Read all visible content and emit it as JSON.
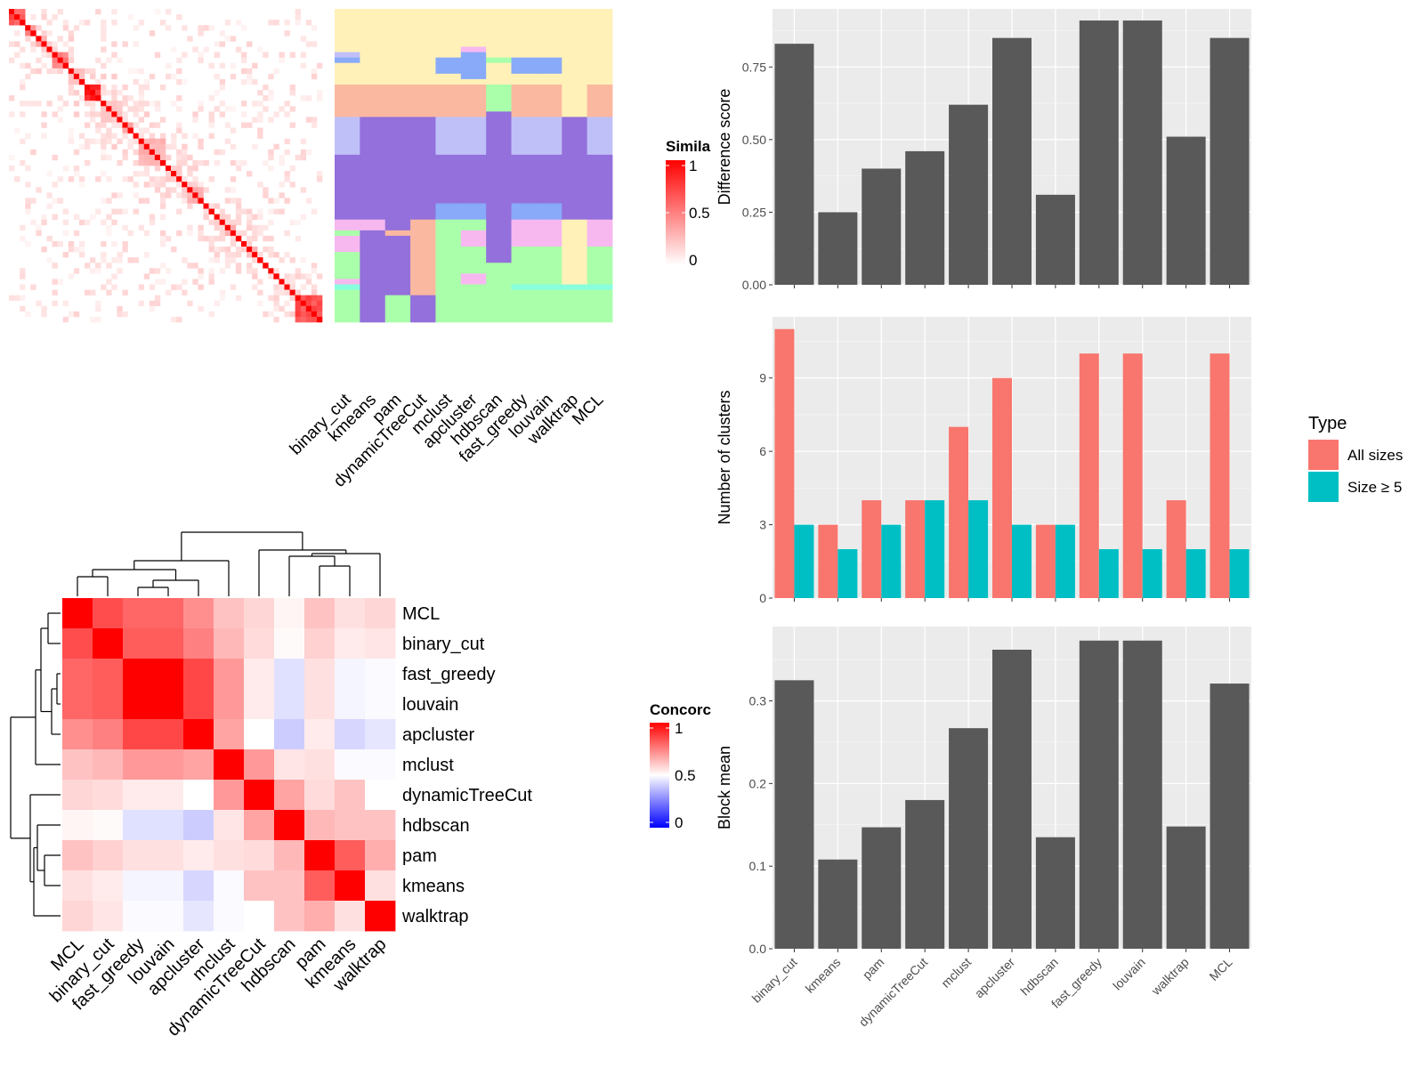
{
  "colors": {
    "panel_bg": "#ebebeb",
    "grid": "#ffffff",
    "bar_gray": "#595959",
    "all_sizes": "#f8766d",
    "size_ge5": "#00bfc4",
    "heat_high": "#ff0000",
    "heat_mid": "#ffffff",
    "heat_low": "#0000ff"
  },
  "chart_data": [
    {
      "id": "similarity-heatmap",
      "type": "heatmap",
      "legend": {
        "title": "Simila",
        "ticks": [
          "1",
          "0.5",
          "0"
        ]
      },
      "n_terms": 58,
      "blocks": [
        {
          "start": 0,
          "size": 3,
          "value": 0.65
        },
        {
          "start": 3,
          "size": 2,
          "value": 0.45
        },
        {
          "start": 5,
          "size": 2,
          "value": 0.3
        },
        {
          "start": 8,
          "size": 3,
          "value": 0.5
        },
        {
          "start": 11,
          "size": 3,
          "value": 0.25
        },
        {
          "start": 14,
          "size": 3,
          "value": 0.8
        },
        {
          "start": 17,
          "size": 4,
          "value": 0.22
        },
        {
          "start": 21,
          "size": 2,
          "value": 0.4
        },
        {
          "start": 24,
          "size": 5,
          "value": 0.3
        },
        {
          "start": 29,
          "size": 3,
          "value": 0.2
        },
        {
          "start": 33,
          "size": 3,
          "value": 0.3
        },
        {
          "start": 40,
          "size": 2,
          "value": 0.35
        },
        {
          "start": 44,
          "size": 2,
          "value": 0.3
        },
        {
          "start": 53,
          "size": 5,
          "value": 0.7
        }
      ],
      "clusters": [
        {
          "name": "binary_cut",
          "segments": [
            [
              0,
              8,
              "#fff1b8"
            ],
            [
              8,
              9,
              "#c0c0f8"
            ],
            [
              9,
              10,
              "#88aaf8"
            ],
            [
              10,
              14,
              "#fff1b8"
            ],
            [
              14,
              20,
              "#fbb8a0"
            ],
            [
              20,
              22,
              "#c0c0f8"
            ],
            [
              22,
              27,
              "#c0c0f8"
            ],
            [
              27,
              39,
              "#9370db"
            ],
            [
              39,
              41,
              "#f7b8f0"
            ],
            [
              41,
              42,
              "#aaffaa"
            ],
            [
              42,
              45,
              "#f7b8f0"
            ],
            [
              45,
              48,
              "#aaffaa"
            ],
            [
              48,
              50,
              "#aaffaa"
            ],
            [
              50,
              51,
              "#f7b8f0"
            ],
            [
              51,
              52,
              "#88ffdd"
            ],
            [
              52,
              58,
              "#aaffaa"
            ]
          ]
        },
        {
          "name": "kmeans",
          "segments": [
            [
              0,
              14,
              "#fff1b8"
            ],
            [
              14,
              20,
              "#fbb8a0"
            ],
            [
              20,
              39,
              "#9370db"
            ],
            [
              39,
              41,
              "#f7b8f0"
            ],
            [
              41,
              58,
              "#9370db"
            ]
          ]
        },
        {
          "name": "pam",
          "segments": [
            [
              0,
              14,
              "#fff1b8"
            ],
            [
              14,
              20,
              "#fbb8a0"
            ],
            [
              20,
              41,
              "#9370db"
            ],
            [
              41,
              42,
              "#fbb8a0"
            ],
            [
              42,
              53,
              "#9370db"
            ],
            [
              53,
              58,
              "#aaffaa"
            ]
          ]
        },
        {
          "name": "dynamicTreeCut",
          "segments": [
            [
              0,
              14,
              "#fff1b8"
            ],
            [
              14,
              20,
              "#fbb8a0"
            ],
            [
              20,
              27,
              "#9370db"
            ],
            [
              27,
              39,
              "#9370db"
            ],
            [
              39,
              53,
              "#fbb8a0"
            ],
            [
              53,
              58,
              "#9370db"
            ]
          ]
        },
        {
          "name": "mclust",
          "segments": [
            [
              0,
              9,
              "#fff1b8"
            ],
            [
              9,
              12,
              "#88aaf8"
            ],
            [
              12,
              14,
              "#fff1b8"
            ],
            [
              14,
              20,
              "#fbb8a0"
            ],
            [
              20,
              27,
              "#c0c0f8"
            ],
            [
              27,
              36,
              "#9370db"
            ],
            [
              36,
              39,
              "#88aaf8"
            ],
            [
              39,
              58,
              "#aaffaa"
            ]
          ]
        },
        {
          "name": "apcluster",
          "segments": [
            [
              0,
              7,
              "#fff1b8"
            ],
            [
              7,
              8,
              "#f7b8f0"
            ],
            [
              8,
              12,
              "#88aaf8"
            ],
            [
              12,
              13,
              "#88aaf8"
            ],
            [
              13,
              14,
              "#fff1b8"
            ],
            [
              14,
              20,
              "#fbb8a0"
            ],
            [
              20,
              27,
              "#c0c0f8"
            ],
            [
              27,
              36,
              "#9370db"
            ],
            [
              36,
              39,
              "#88aaf8"
            ],
            [
              39,
              41,
              "#aaffaa"
            ],
            [
              41,
              44,
              "#f7b8f0"
            ],
            [
              44,
              49,
              "#aaffaa"
            ],
            [
              49,
              51,
              "#f7b8f0"
            ],
            [
              51,
              58,
              "#aaffaa"
            ]
          ]
        },
        {
          "name": "hdbscan",
          "segments": [
            [
              0,
              9,
              "#fff1b8"
            ],
            [
              9,
              10,
              "#aaffaa"
            ],
            [
              10,
              14,
              "#fff1b8"
            ],
            [
              14,
              19,
              "#aaffaa"
            ],
            [
              19,
              46,
              "#9370db"
            ],
            [
              46,
              47,
              "#9370db"
            ],
            [
              47,
              58,
              "#aaffaa"
            ]
          ]
        },
        {
          "name": "fast_greedy",
          "segments": [
            [
              0,
              9,
              "#fff1b8"
            ],
            [
              9,
              12,
              "#88aaf8"
            ],
            [
              12,
              14,
              "#fff1b8"
            ],
            [
              14,
              20,
              "#fbb8a0"
            ],
            [
              20,
              27,
              "#c0c0f8"
            ],
            [
              27,
              36,
              "#9370db"
            ],
            [
              36,
              39,
              "#88aaf8"
            ],
            [
              39,
              44,
              "#f7b8f0"
            ],
            [
              44,
              51,
              "#aaffaa"
            ],
            [
              51,
              52,
              "#88ffdd"
            ],
            [
              52,
              58,
              "#aaffaa"
            ]
          ]
        },
        {
          "name": "louvain",
          "segments": [
            [
              0,
              9,
              "#fff1b8"
            ],
            [
              9,
              12,
              "#88aaf8"
            ],
            [
              12,
              14,
              "#fff1b8"
            ],
            [
              14,
              20,
              "#fbb8a0"
            ],
            [
              20,
              27,
              "#c0c0f8"
            ],
            [
              27,
              36,
              "#9370db"
            ],
            [
              36,
              39,
              "#88aaf8"
            ],
            [
              39,
              44,
              "#f7b8f0"
            ],
            [
              44,
              51,
              "#aaffaa"
            ],
            [
              51,
              52,
              "#88ffdd"
            ],
            [
              52,
              58,
              "#aaffaa"
            ]
          ]
        },
        {
          "name": "walktrap",
          "segments": [
            [
              0,
              20,
              "#fff1b8"
            ],
            [
              20,
              39,
              "#9370db"
            ],
            [
              39,
              51,
              "#fff1b8"
            ],
            [
              51,
              52,
              "#88ffdd"
            ],
            [
              52,
              58,
              "#aaffaa"
            ]
          ]
        },
        {
          "name": "MCL",
          "segments": [
            [
              0,
              14,
              "#fff1b8"
            ],
            [
              14,
              20,
              "#fbb8a0"
            ],
            [
              20,
              22,
              "#c0c0f8"
            ],
            [
              22,
              27,
              "#c0c0f8"
            ],
            [
              27,
              39,
              "#9370db"
            ],
            [
              39,
              41,
              "#f7b8f0"
            ],
            [
              41,
              44,
              "#f7b8f0"
            ],
            [
              44,
              51,
              "#aaffaa"
            ],
            [
              51,
              52,
              "#88ffdd"
            ],
            [
              52,
              58,
              "#aaffaa"
            ]
          ]
        }
      ]
    },
    {
      "id": "concordance-heatmap",
      "type": "heatmap",
      "legend": {
        "title": "Concorc",
        "ticks": [
          "1",
          "0.5",
          "0"
        ]
      },
      "labels": [
        "MCL",
        "binary_cut",
        "fast_greedy",
        "louvain",
        "apcluster",
        "mclust",
        "dynamicTreeCut",
        "hdbscan",
        "pam",
        "kmeans",
        "walktrap"
      ],
      "values": [
        [
          1.0,
          0.85,
          0.8,
          0.8,
          0.72,
          0.62,
          0.58,
          0.52,
          0.62,
          0.56,
          0.58
        ],
        [
          0.85,
          1.0,
          0.82,
          0.82,
          0.75,
          0.64,
          0.57,
          0.51,
          0.59,
          0.54,
          0.55
        ],
        [
          0.8,
          0.82,
          1.0,
          1.0,
          0.86,
          0.7,
          0.54,
          0.44,
          0.56,
          0.48,
          0.49
        ],
        [
          0.8,
          0.82,
          1.0,
          1.0,
          0.86,
          0.7,
          0.54,
          0.44,
          0.56,
          0.48,
          0.49
        ],
        [
          0.72,
          0.75,
          0.86,
          0.86,
          1.0,
          0.68,
          0.5,
          0.4,
          0.54,
          0.42,
          0.45
        ],
        [
          0.62,
          0.64,
          0.7,
          0.7,
          0.68,
          1.0,
          0.7,
          0.55,
          0.56,
          0.49,
          0.49
        ],
        [
          0.58,
          0.57,
          0.54,
          0.54,
          0.5,
          0.7,
          1.0,
          0.68,
          0.57,
          0.62,
          0.5
        ],
        [
          0.52,
          0.51,
          0.44,
          0.44,
          0.4,
          0.55,
          0.68,
          1.0,
          0.64,
          0.62,
          0.62
        ],
        [
          0.62,
          0.59,
          0.56,
          0.56,
          0.54,
          0.56,
          0.57,
          0.64,
          1.0,
          0.82,
          0.66
        ],
        [
          0.56,
          0.54,
          0.48,
          0.48,
          0.42,
          0.49,
          0.62,
          0.62,
          0.82,
          1.0,
          0.56
        ],
        [
          0.58,
          0.55,
          0.49,
          0.49,
          0.45,
          0.49,
          0.5,
          0.62,
          0.66,
          0.56,
          1.0
        ]
      ]
    },
    {
      "id": "difference-score",
      "type": "bar",
      "categories": [
        "binary_cut",
        "kmeans",
        "pam",
        "dynamicTreeCut",
        "mclust",
        "apcluster",
        "hdbscan",
        "fast_greedy",
        "louvain",
        "walktrap",
        "MCL"
      ],
      "values": [
        0.83,
        0.25,
        0.4,
        0.46,
        0.62,
        0.85,
        0.31,
        0.91,
        0.91,
        0.51,
        0.85
      ],
      "ylabel": "Difference score",
      "ylim": [
        0,
        0.95
      ],
      "yticks": [
        0,
        0.25,
        0.5,
        0.75
      ],
      "ytick_labels": [
        "0.00",
        "0.25",
        "0.50",
        "0.75"
      ]
    },
    {
      "id": "number-of-clusters",
      "type": "bar",
      "categories": [
        "binary_cut",
        "kmeans",
        "pam",
        "dynamicTreeCut",
        "mclust",
        "apcluster",
        "hdbscan",
        "fast_greedy",
        "louvain",
        "walktrap",
        "MCL"
      ],
      "series": [
        {
          "name": "All sizes",
          "values": [
            11,
            3,
            4,
            4,
            7,
            9,
            3,
            10,
            10,
            4,
            10
          ]
        },
        {
          "name": "Size ≥ 5",
          "values": [
            3,
            2,
            3,
            4,
            4,
            3,
            3,
            2,
            2,
            2,
            2
          ]
        }
      ],
      "ylabel": "Number of clusters",
      "ylim": [
        0,
        11.5
      ],
      "yticks": [
        0,
        3,
        6,
        9
      ],
      "ytick_labels": [
        "0",
        "3",
        "6",
        "9"
      ],
      "legend": {
        "title": "Type",
        "position": "right"
      }
    },
    {
      "id": "block-mean",
      "type": "bar",
      "categories": [
        "binary_cut",
        "kmeans",
        "pam",
        "dynamicTreeCut",
        "mclust",
        "apcluster",
        "hdbscan",
        "fast_greedy",
        "louvain",
        "walktrap",
        "MCL"
      ],
      "values": [
        0.325,
        0.108,
        0.147,
        0.18,
        0.267,
        0.362,
        0.135,
        0.373,
        0.373,
        0.148,
        0.321
      ],
      "ylabel": "Block mean",
      "ylim": [
        0,
        0.39
      ],
      "yticks": [
        0,
        0.1,
        0.2,
        0.3
      ],
      "ytick_labels": [
        "0.0",
        "0.1",
        "0.2",
        "0.3"
      ]
    }
  ]
}
